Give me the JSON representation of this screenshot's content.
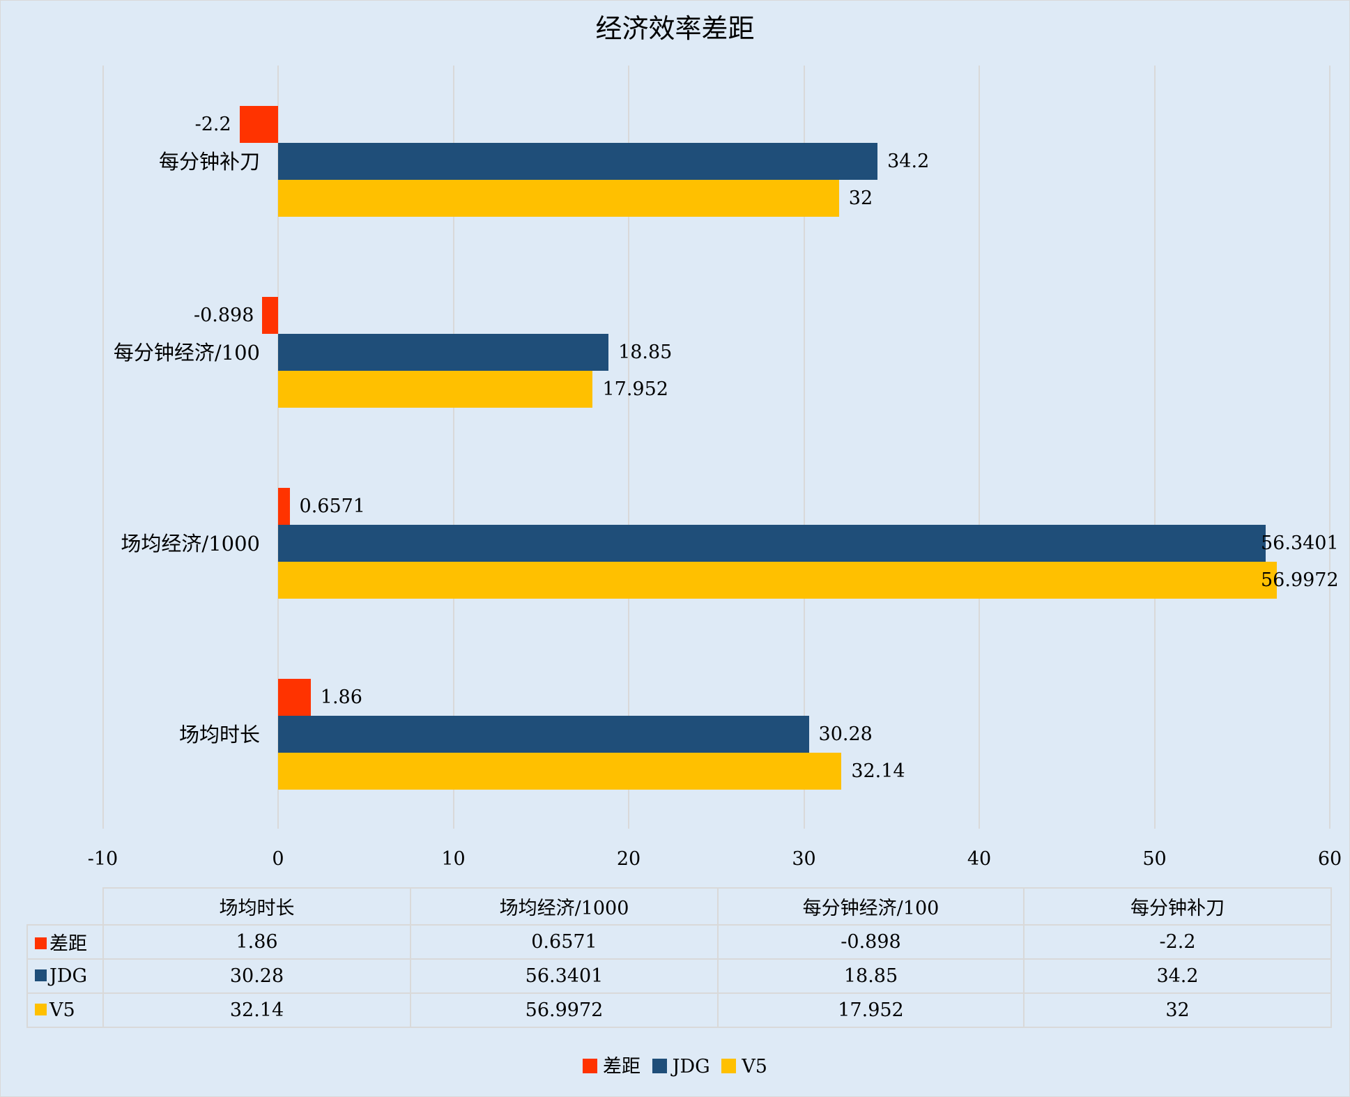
{
  "chart_data": {
    "type": "bar",
    "orientation": "horizontal",
    "title": "经济效率差距",
    "xlabel": "",
    "ylabel": "",
    "xlim": [
      -10,
      60
    ],
    "x_ticks": [
      "-10",
      "0",
      "10",
      "20",
      "30",
      "40",
      "50",
      "60"
    ],
    "grid": true,
    "legend_position": "bottom",
    "categories": [
      "场均时长",
      "场均经济/1000",
      "每分钟经济/100",
      "每分钟补刀"
    ],
    "series": [
      {
        "name": "差距",
        "color": "#FF3300",
        "values": [
          1.86,
          0.6571,
          -0.898,
          -2.2
        ],
        "labels": [
          "1.86",
          "0.6571",
          "-0.898",
          "-2.2"
        ]
      },
      {
        "name": "JDG",
        "color": "#1F4E79",
        "values": [
          30.28,
          56.3401,
          18.85,
          34.2
        ],
        "labels": [
          "30.28",
          "56.3401",
          "18.85",
          "34.2"
        ]
      },
      {
        "name": "V5",
        "color": "#FFC000",
        "values": [
          32.14,
          56.9972,
          17.952,
          32
        ],
        "labels": [
          "32.14",
          "56.9972",
          "17.952",
          "32"
        ]
      }
    ],
    "data_table": {
      "headers": [
        "场均时长",
        "场均经济/1000",
        "每分钟经济/100",
        "每分钟补刀"
      ],
      "rows": [
        {
          "name": "差距",
          "values": [
            "1.86",
            "0.6571",
            "-0.898",
            "-2.2"
          ]
        },
        {
          "name": "JDG",
          "values": [
            "30.28",
            "56.3401",
            "18.85",
            "34.2"
          ]
        },
        {
          "name": "V5",
          "values": [
            "32.14",
            "56.9972",
            "17.952",
            "32"
          ]
        }
      ]
    }
  },
  "colors": {
    "background": "#DEEAF6",
    "grid": "#D9D9D9"
  }
}
